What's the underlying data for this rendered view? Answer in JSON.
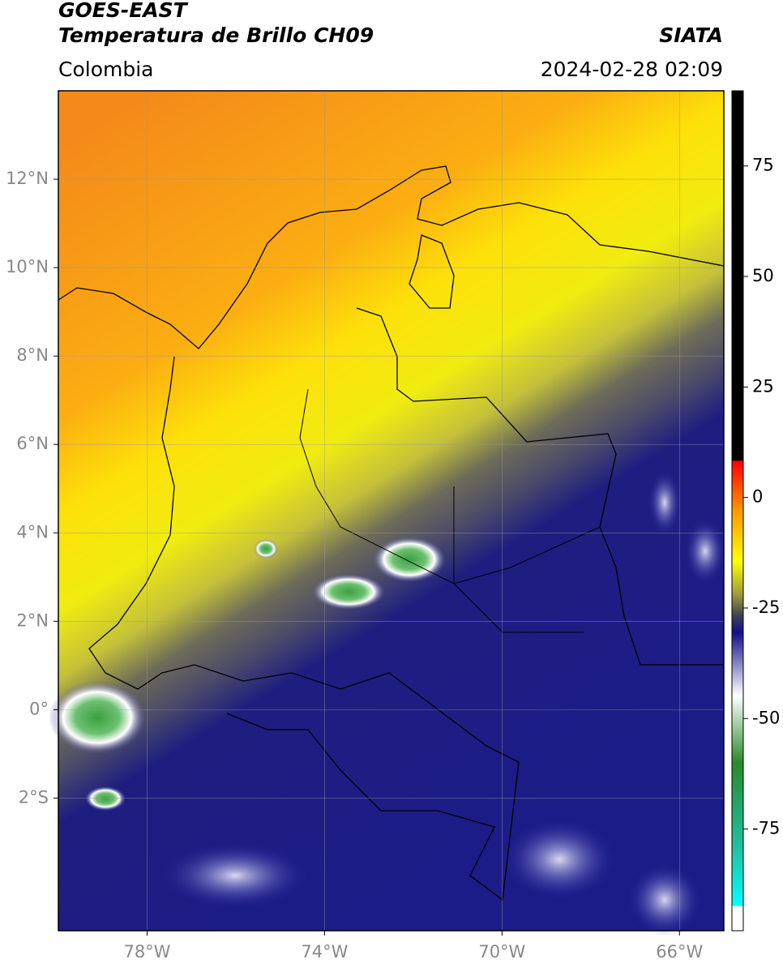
{
  "header": {
    "title": "GOES-EAST",
    "subtitle": "Temperatura de Brillo CH09",
    "region": "Colombia",
    "agency": "SIATA",
    "datetime": "2024-02-28 02:09"
  },
  "map": {
    "lonlim": [
      -80,
      -65
    ],
    "latlim": [
      -5,
      14
    ],
    "lonticks": [
      {
        "value": -78,
        "label": "78°W"
      },
      {
        "value": -74,
        "label": "74°W"
      },
      {
        "value": -70,
        "label": "70°W"
      },
      {
        "value": -66,
        "label": "66°W"
      }
    ],
    "latticks": [
      {
        "value": 12,
        "label": "12°N"
      },
      {
        "value": 10,
        "label": "10°N"
      },
      {
        "value": 8,
        "label": "8°N"
      },
      {
        "value": 6,
        "label": "6°N"
      },
      {
        "value": 4,
        "label": "4°N"
      },
      {
        "value": 2,
        "label": "2°N"
      },
      {
        "value": 0,
        "label": "0°"
      },
      {
        "value": -2,
        "label": "2°S"
      }
    ]
  },
  "colorbar": {
    "lim": [
      -98,
      92
    ],
    "ticks": [
      75,
      50,
      25,
      0,
      -25,
      -50,
      -75
    ]
  }
}
